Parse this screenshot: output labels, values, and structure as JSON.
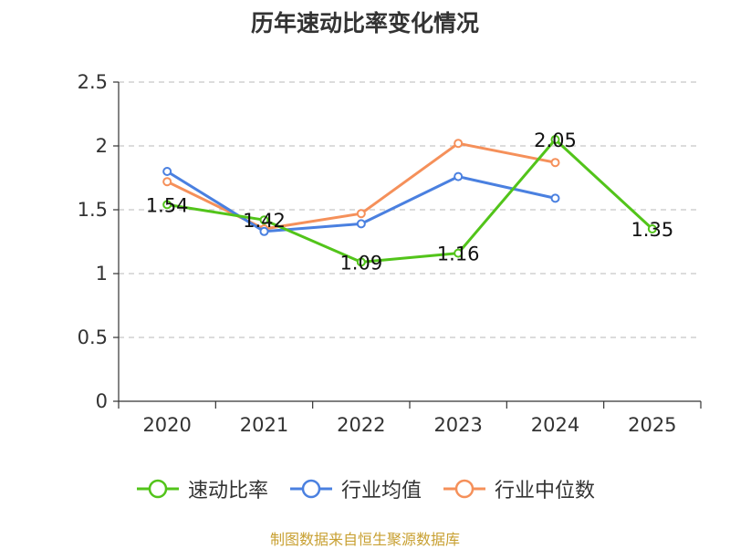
{
  "chart_data": {
    "type": "line",
    "title": "历年速动比率变化情况",
    "categories": [
      "2020",
      "2021",
      "2022",
      "2023",
      "2024",
      "2025"
    ],
    "ylim": [
      0,
      2.5
    ],
    "yticks": [
      "0",
      "0.5",
      "1",
      "1.5",
      "2",
      "2.5"
    ],
    "ytick_values": [
      0,
      0.5,
      1,
      1.5,
      2,
      2.5
    ],
    "grid": true,
    "legend_position": "bottom",
    "series": [
      {
        "name": "速动比率",
        "color": "#52c41a",
        "values": [
          1.54,
          1.42,
          1.09,
          1.16,
          2.05,
          1.35
        ],
        "labels": [
          "1.54",
          "1.42",
          "1.09",
          "1.16",
          "2.05",
          "1.35"
        ]
      },
      {
        "name": "行业均值",
        "color": "#4a80e0",
        "values": [
          1.8,
          1.33,
          1.39,
          1.76,
          1.59,
          null
        ]
      },
      {
        "name": "行业中位数",
        "color": "#f5905a",
        "values": [
          1.72,
          1.35,
          1.47,
          2.02,
          1.87,
          null
        ]
      }
    ]
  },
  "footer": {
    "source": "制图数据来自恒生聚源数据库"
  }
}
